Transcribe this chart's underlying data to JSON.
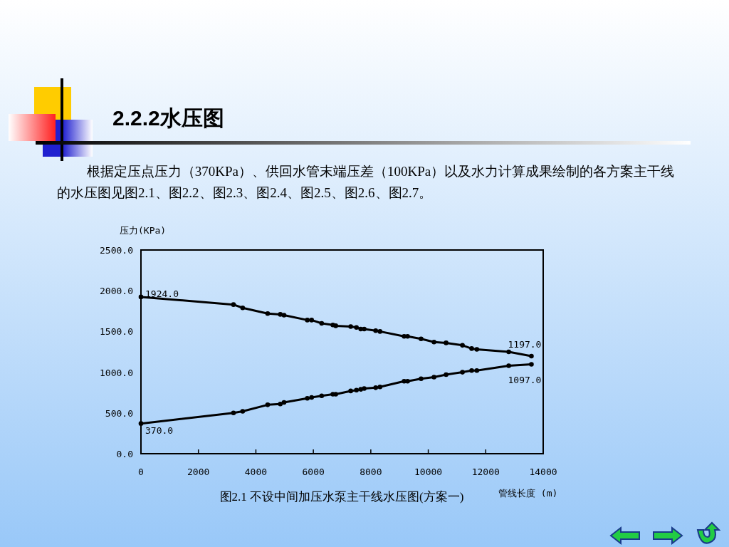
{
  "chart_data": {
    "type": "line",
    "title": "2.2.2水压图",
    "subtitle": "根据定压点压力（370KPa）、供回水管末端压差（100KPa）以及水力计算成果绘制的各方案主干线的水压图见图2.1、图2.2、图2.3、图2.4、图2.5、图2.6、图2.7。",
    "xlabel": "管线长度 (m)",
    "ylabel": "压力(KPa)",
    "annotations": [
      "图2.1   不设中间加压水泵主干线水压图(方案一)"
    ],
    "x": [
      0,
      3220,
      3540,
      4410,
      4850,
      4980,
      5790,
      5940,
      6290,
      6680,
      6780,
      7300,
      7500,
      7650,
      7770,
      8170,
      8320,
      9160,
      9280,
      9750,
      10200,
      10620,
      11190,
      11510,
      11690,
      12800,
      13590
    ],
    "series": [
      {
        "color": "#000000",
        "values": [
          1924,
          1830,
          1790,
          1720,
          1710,
          1700,
          1640,
          1640,
          1600,
          1580,
          1570,
          1560,
          1550,
          1530,
          1530,
          1510,
          1500,
          1440,
          1440,
          1410,
          1370,
          1360,
          1330,
          1290,
          1280,
          1250,
          1197
        ],
        "value_labels": [
          "1924.0",
          null,
          null,
          null,
          null,
          null,
          null,
          null,
          null,
          null,
          null,
          null,
          null,
          null,
          null,
          null,
          null,
          null,
          null,
          null,
          null,
          null,
          null,
          null,
          null,
          null,
          "1197.0"
        ]
      },
      {
        "color": "#000000",
        "values": [
          370,
          500,
          520,
          600,
          610,
          630,
          680,
          690,
          710,
          730,
          730,
          770,
          780,
          790,
          800,
          810,
          820,
          890,
          890,
          920,
          940,
          970,
          1000,
          1020,
          1020,
          1080,
          1097
        ],
        "value_labels": [
          "370.0",
          null,
          null,
          null,
          null,
          null,
          null,
          null,
          null,
          null,
          null,
          null,
          null,
          null,
          null,
          null,
          null,
          null,
          null,
          null,
          null,
          null,
          null,
          null,
          null,
          null,
          "1097.0"
        ]
      }
    ],
    "xlim": [
      0,
      14000
    ],
    "ylim": [
      0,
      2500
    ],
    "xticks": [
      0,
      2000,
      4000,
      6000,
      8000,
      10000,
      12000,
      14000
    ],
    "yticks": [
      {
        "value": 0,
        "label": "0.0"
      },
      {
        "value": 500,
        "label": "500.0"
      },
      {
        "value": 1000,
        "label": "1000.0"
      },
      {
        "value": 1500,
        "label": "1500.0"
      },
      {
        "value": 2000,
        "label": "2000.0"
      },
      {
        "value": 2500,
        "label": "2500.0"
      }
    ],
    "marker": "circle",
    "line_style": "solid",
    "grid": false
  }
}
